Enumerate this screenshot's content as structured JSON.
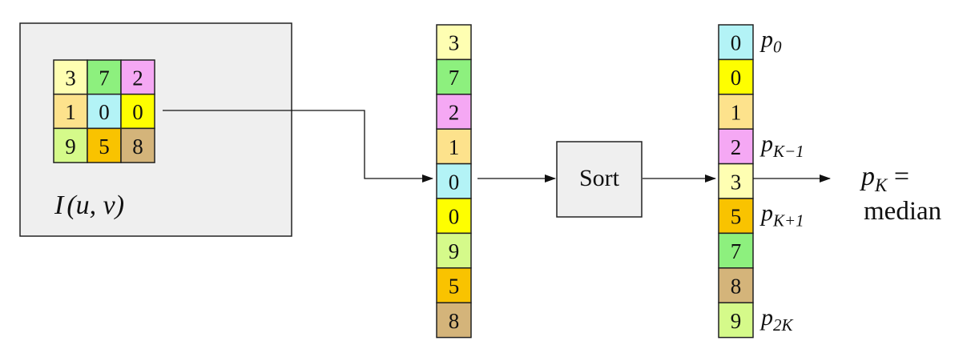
{
  "colors": {
    "c0": "#b3f3f6",
    "c1": "#fde28c",
    "c2": "#f5a8f4",
    "c3": "#fefeb2",
    "c5": "#f9c300",
    "c7": "#8df07e",
    "c8": "#d4b47a",
    "c9": "#d5fa8a",
    "yellow0": "#fefe00",
    "panel": "#efefef",
    "stroke": "#222222"
  },
  "image_panel": {
    "label_I": "I",
    "label_args": "(u, v)",
    "grid": [
      [
        {
          "v": "3",
          "c": "c3"
        },
        {
          "v": "7",
          "c": "c7"
        },
        {
          "v": "2",
          "c": "c2"
        }
      ],
      [
        {
          "v": "1",
          "c": "c1"
        },
        {
          "v": "0",
          "c": "c0"
        },
        {
          "v": "0",
          "c": "yellow0"
        }
      ],
      [
        {
          "v": "9",
          "c": "c9"
        },
        {
          "v": "5",
          "c": "c5"
        },
        {
          "v": "8",
          "c": "c8"
        }
      ]
    ]
  },
  "unsorted": [
    {
      "v": "3",
      "c": "c3"
    },
    {
      "v": "7",
      "c": "c7"
    },
    {
      "v": "2",
      "c": "c2"
    },
    {
      "v": "1",
      "c": "c1"
    },
    {
      "v": "0",
      "c": "c0"
    },
    {
      "v": "0",
      "c": "yellow0"
    },
    {
      "v": "9",
      "c": "c9"
    },
    {
      "v": "5",
      "c": "c5"
    },
    {
      "v": "8",
      "c": "c8"
    }
  ],
  "sort_box": {
    "label": "Sort"
  },
  "sorted": [
    {
      "v": "0",
      "c": "c0",
      "label": "p",
      "sub": "0"
    },
    {
      "v": "0",
      "c": "yellow0",
      "label": "",
      "sub": ""
    },
    {
      "v": "1",
      "c": "c1",
      "label": "",
      "sub": ""
    },
    {
      "v": "2",
      "c": "c2",
      "label": "p",
      "sub": "K−1"
    },
    {
      "v": "3",
      "c": "c3",
      "label": "",
      "sub": ""
    },
    {
      "v": "5",
      "c": "c5",
      "label": "p",
      "sub": "K+1"
    },
    {
      "v": "7",
      "c": "c7",
      "label": "",
      "sub": ""
    },
    {
      "v": "8",
      "c": "c8",
      "label": "",
      "sub": ""
    },
    {
      "v": "9",
      "c": "c9",
      "label": "p",
      "sub": "2K"
    }
  ],
  "result": {
    "p": "p",
    "sub": "K",
    "eq": " =",
    "word": "median"
  }
}
